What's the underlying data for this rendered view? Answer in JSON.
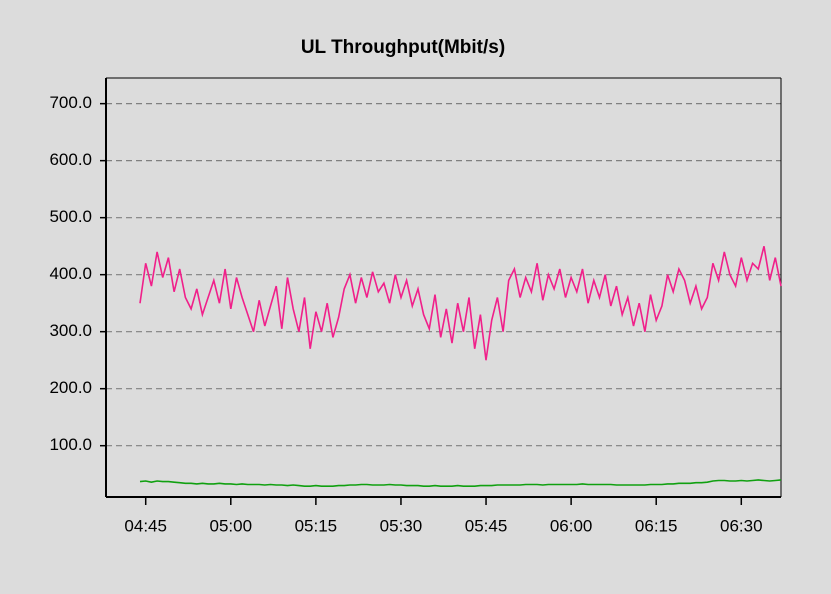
{
  "chart_data": {
    "type": "line",
    "title": "UL Throughput(Mbit/s)",
    "x": [
      "04:44",
      "04:45",
      "04:46",
      "04:47",
      "04:48",
      "04:49",
      "04:50",
      "04:51",
      "04:52",
      "04:53",
      "04:54",
      "04:55",
      "04:56",
      "04:57",
      "04:58",
      "04:59",
      "05:00",
      "05:01",
      "05:02",
      "05:03",
      "05:04",
      "05:05",
      "05:06",
      "05:07",
      "05:08",
      "05:09",
      "05:10",
      "05:11",
      "05:12",
      "05:13",
      "05:14",
      "05:15",
      "05:16",
      "05:17",
      "05:18",
      "05:19",
      "05:20",
      "05:21",
      "05:22",
      "05:23",
      "05:24",
      "05:25",
      "05:26",
      "05:27",
      "05:28",
      "05:29",
      "05:30",
      "05:31",
      "05:32",
      "05:33",
      "05:34",
      "05:35",
      "05:36",
      "05:37",
      "05:38",
      "05:39",
      "05:40",
      "05:41",
      "05:42",
      "05:43",
      "05:44",
      "05:45",
      "05:46",
      "05:47",
      "05:48",
      "05:49",
      "05:50",
      "05:51",
      "05:52",
      "05:53",
      "05:54",
      "05:55",
      "05:56",
      "05:57",
      "05:58",
      "05:59",
      "06:00",
      "06:01",
      "06:02",
      "06:03",
      "06:04",
      "06:05",
      "06:06",
      "06:07",
      "06:08",
      "06:09",
      "06:10",
      "06:11",
      "06:12",
      "06:13",
      "06:14",
      "06:15",
      "06:16",
      "06:17",
      "06:18",
      "06:19",
      "06:20",
      "06:21",
      "06:22",
      "06:23",
      "06:24",
      "06:25",
      "06:26",
      "06:27",
      "06:28",
      "06:29",
      "06:30",
      "06:31",
      "06:32",
      "06:33",
      "06:34",
      "06:35",
      "06:36",
      "06:37"
    ],
    "series": [
      {
        "color": "#f0208a",
        "values": [
          350,
          420,
          380,
          440,
          395,
          430,
          370,
          410,
          360,
          340,
          375,
          330,
          360,
          390,
          350,
          410,
          340,
          395,
          360,
          330,
          300,
          355,
          310,
          345,
          380,
          305,
          395,
          340,
          300,
          360,
          270,
          335,
          300,
          350,
          290,
          325,
          375,
          400,
          350,
          395,
          360,
          405,
          370,
          385,
          350,
          400,
          360,
          390,
          345,
          375,
          330,
          305,
          365,
          290,
          340,
          280,
          350,
          300,
          360,
          270,
          330,
          250,
          320,
          360,
          300,
          390,
          410,
          360,
          395,
          370,
          420,
          355,
          400,
          375,
          410,
          360,
          395,
          370,
          410,
          350,
          390,
          360,
          400,
          345,
          380,
          330,
          360,
          310,
          350,
          300,
          365,
          320,
          345,
          400,
          370,
          410,
          390,
          350,
          380,
          340,
          360,
          420,
          390,
          440,
          400,
          380,
          430,
          390,
          420,
          410,
          450,
          390,
          430,
          380
        ]
      },
      {
        "color": "#10a010",
        "values": [
          37,
          38,
          36,
          38,
          37,
          37,
          36,
          35,
          34,
          34,
          33,
          34,
          33,
          33,
          34,
          33,
          33,
          32,
          33,
          32,
          32,
          32,
          31,
          32,
          31,
          31,
          30,
          31,
          30,
          29,
          29,
          30,
          29,
          29,
          29,
          30,
          30,
          31,
          31,
          32,
          32,
          31,
          31,
          31,
          32,
          31,
          31,
          30,
          30,
          30,
          29,
          29,
          30,
          29,
          29,
          29,
          30,
          29,
          29,
          29,
          30,
          30,
          30,
          31,
          31,
          31,
          31,
          31,
          32,
          32,
          32,
          31,
          32,
          32,
          32,
          32,
          32,
          32,
          33,
          32,
          32,
          32,
          32,
          32,
          31,
          31,
          31,
          31,
          31,
          31,
          32,
          32,
          32,
          33,
          33,
          34,
          34,
          34,
          35,
          35,
          36,
          38,
          39,
          39,
          38,
          38,
          39,
          38,
          39,
          40,
          39,
          38,
          39,
          40
        ]
      }
    ],
    "xlim": [
      "04:38",
      "06:37"
    ],
    "xticks": [
      "04:45",
      "05:00",
      "05:15",
      "05:30",
      "05:45",
      "06:00",
      "06:15",
      "06:30"
    ],
    "ylim": [
      10,
      745
    ],
    "yticks": [
      {
        "value": 100,
        "label": "100.0"
      },
      {
        "value": 200,
        "label": "200.0"
      },
      {
        "value": 300,
        "label": "300.0"
      },
      {
        "value": 400,
        "label": "400.0"
      },
      {
        "value": 500,
        "label": "500.0"
      },
      {
        "value": 600,
        "label": "600.0"
      },
      {
        "value": 700,
        "label": "700.0"
      }
    ],
    "grid": true
  }
}
